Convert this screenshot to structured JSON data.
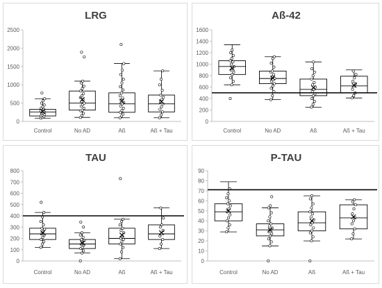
{
  "chart_data": [
    {
      "type": "box",
      "title": "LRG",
      "categories": [
        "Control",
        "No AD",
        "Aß",
        "Aß + Tau"
      ],
      "ylim": [
        0,
        2500
      ],
      "yticks": [
        0,
        500,
        1000,
        1500,
        2000,
        2500
      ],
      "boxes": [
        {
          "min": 90,
          "q1": 150,
          "median": 260,
          "q3": 330,
          "max": 620,
          "mean": 280,
          "points": [
            90,
            110,
            130,
            150,
            170,
            190,
            210,
            230,
            250,
            260,
            270,
            290,
            310,
            330,
            360,
            400,
            450,
            500,
            560,
            620,
            780
          ]
        },
        {
          "min": 110,
          "q1": 310,
          "median": 500,
          "q3": 830,
          "max": 1100,
          "mean": 600,
          "points": [
            110,
            160,
            220,
            290,
            310,
            360,
            420,
            460,
            500,
            540,
            600,
            650,
            700,
            760,
            830,
            900,
            960,
            1050,
            1100,
            1760,
            1890
          ]
        },
        {
          "min": 100,
          "q1": 250,
          "median": 480,
          "q3": 780,
          "max": 1580,
          "mean": 560,
          "points": [
            100,
            150,
            200,
            250,
            300,
            360,
            420,
            480,
            520,
            580,
            640,
            700,
            780,
            860,
            950,
            1050,
            1150,
            1280,
            1400,
            1580,
            2100
          ]
        },
        {
          "min": 100,
          "q1": 260,
          "median": 480,
          "q3": 720,
          "max": 1380,
          "mean": 540,
          "points": [
            100,
            180,
            260,
            330,
            400,
            480,
            540,
            600,
            660,
            720,
            850,
            1000,
            1150,
            1380
          ]
        }
      ]
    },
    {
      "type": "box",
      "title": "Aß-42",
      "categories": [
        "Control",
        "No AD",
        "Aß",
        "Aß + Tau"
      ],
      "ylim": [
        0,
        1600
      ],
      "yticks": [
        0,
        200,
        400,
        600,
        800,
        1000,
        1200,
        1400,
        1600
      ],
      "reference_line": 500,
      "boxes": [
        {
          "min": 640,
          "q1": 820,
          "median": 960,
          "q3": 1060,
          "max": 1340,
          "mean": 930,
          "points": [
            400,
            640,
            700,
            760,
            820,
            860,
            900,
            940,
            960,
            1000,
            1040,
            1060,
            1100,
            1150,
            1200,
            1250
          ]
        },
        {
          "min": 380,
          "q1": 660,
          "median": 750,
          "q3": 880,
          "max": 1130,
          "mean": 760,
          "points": [
            380,
            450,
            520,
            580,
            620,
            660,
            700,
            730,
            750,
            780,
            820,
            860,
            880,
            950,
            1020,
            1100,
            1130
          ]
        },
        {
          "min": 250,
          "q1": 450,
          "median": 560,
          "q3": 740,
          "max": 1040,
          "mean": 590,
          "points": [
            250,
            300,
            350,
            400,
            450,
            480,
            520,
            560,
            600,
            640,
            680,
            740,
            800,
            860,
            920,
            1040
          ]
        },
        {
          "min": 410,
          "q1": 500,
          "median": 620,
          "q3": 790,
          "max": 900,
          "mean": 630,
          "points": [
            410,
            450,
            500,
            560,
            620,
            660,
            700,
            760,
            820,
            880
          ]
        }
      ]
    },
    {
      "type": "box",
      "title": "TAU",
      "categories": [
        "Control",
        "No AD",
        "Aß",
        "Aß + Tau"
      ],
      "ylim": [
        0,
        800
      ],
      "yticks": [
        0,
        100,
        200,
        300,
        400,
        500,
        600,
        700,
        800
      ],
      "reference_line": 400,
      "boxes": [
        {
          "min": 120,
          "q1": 190,
          "median": 240,
          "q3": 290,
          "max": 430,
          "mean": 250,
          "points": [
            120,
            150,
            170,
            190,
            210,
            230,
            240,
            260,
            280,
            290,
            320,
            350,
            390,
            430,
            520
          ]
        },
        {
          "min": 70,
          "q1": 110,
          "median": 150,
          "q3": 190,
          "max": 250,
          "mean": 160,
          "points": [
            0,
            70,
            90,
            110,
            120,
            140,
            150,
            160,
            180,
            190,
            210,
            230,
            250,
            300,
            345
          ]
        },
        {
          "min": 20,
          "q1": 150,
          "median": 200,
          "q3": 290,
          "max": 370,
          "mean": 230,
          "points": [
            20,
            80,
            120,
            150,
            170,
            190,
            200,
            220,
            250,
            270,
            290,
            320,
            350,
            370,
            730
          ]
        },
        {
          "min": 110,
          "q1": 190,
          "median": 240,
          "q3": 320,
          "max": 470,
          "mean": 250,
          "points": [
            110,
            150,
            190,
            220,
            240,
            270,
            300,
            320,
            380,
            470
          ]
        }
      ]
    },
    {
      "type": "box",
      "title": "P-TAU",
      "categories": [
        "Control",
        "No AD",
        "Aß",
        "Aß + Tau"
      ],
      "ylim": [
        0,
        90
      ],
      "yticks": [
        0,
        10,
        20,
        30,
        40,
        50,
        60,
        70,
        80,
        90
      ],
      "reference_line": 71,
      "boxes": [
        {
          "min": 29,
          "q1": 40,
          "median": 49,
          "q3": 57,
          "max": 79,
          "mean": 50,
          "points": [
            29,
            33,
            36,
            40,
            43,
            46,
            49,
            52,
            55,
            57,
            60,
            63,
            67,
            72
          ]
        },
        {
          "min": 15,
          "q1": 25,
          "median": 31,
          "q3": 37,
          "max": 53,
          "mean": 31,
          "points": [
            0,
            15,
            19,
            22,
            25,
            27,
            29,
            31,
            33,
            35,
            37,
            40,
            44,
            48,
            53,
            55,
            64
          ]
        },
        {
          "min": 20,
          "q1": 30,
          "median": 38,
          "q3": 49,
          "max": 65,
          "mean": 40,
          "points": [
            0,
            20,
            24,
            28,
            30,
            33,
            36,
            38,
            41,
            44,
            47,
            49,
            53,
            57,
            62,
            65
          ]
        },
        {
          "min": 22,
          "q1": 32,
          "median": 43,
          "q3": 56,
          "max": 61,
          "mean": 44,
          "points": [
            22,
            27,
            32,
            37,
            40,
            43,
            47,
            52,
            56,
            59,
            61
          ]
        }
      ]
    }
  ]
}
